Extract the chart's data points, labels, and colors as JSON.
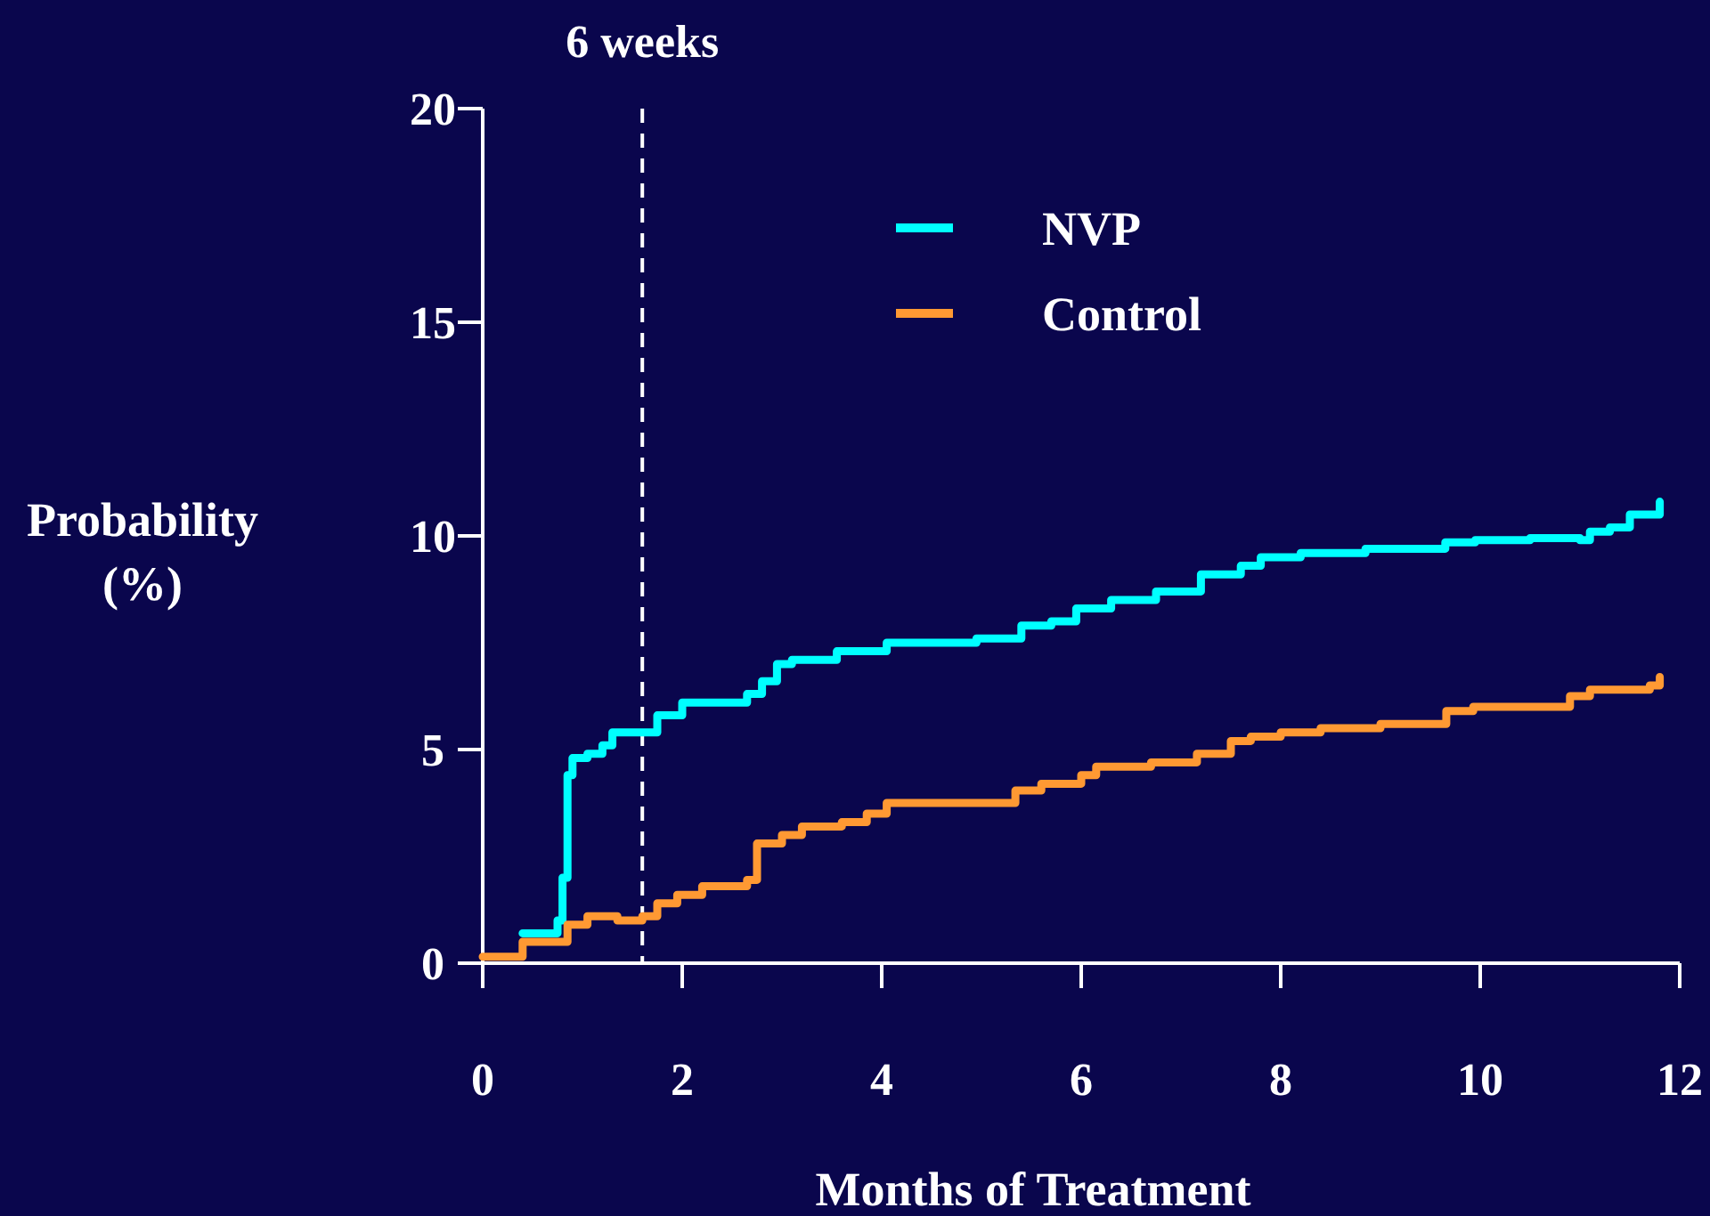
{
  "chart_data": {
    "type": "step",
    "xlabel": "Months of Treatment",
    "ylabel": "Probability (%)",
    "xlim": [
      0,
      12
    ],
    "ylim": [
      0,
      20
    ],
    "xticks": [
      0,
      2,
      4,
      6,
      8,
      10,
      12
    ],
    "yticks": [
      0,
      5,
      10,
      15,
      20
    ],
    "grid": false,
    "legend": "top right",
    "line_style": "solid",
    "marker": "none",
    "ref_lines": [
      {
        "axis": "x",
        "value": 1.6,
        "label": "6 weeks",
        "color": "#ffffff",
        "line_style": "dashed"
      }
    ],
    "series": [
      {
        "name": "NVP",
        "color": "#00ffff",
        "x": [
          0.4,
          0.75,
          0.8,
          0.85,
          0.9,
          1.05,
          1.2,
          1.3,
          1.75,
          2.0,
          2.65,
          2.8,
          2.95,
          3.1,
          3.55,
          4.05,
          4.95,
          5.4,
          5.7,
          5.95,
          6.3,
          6.75,
          7.2,
          7.6,
          7.8,
          8.2,
          8.85,
          9.65,
          9.95,
          10.5,
          11.0,
          11.1,
          11.3,
          11.5,
          11.65,
          11.8
        ],
        "values": [
          0.7,
          1.0,
          2.0,
          4.4,
          4.8,
          4.9,
          5.1,
          5.4,
          5.8,
          6.1,
          6.3,
          6.6,
          7.0,
          7.1,
          7.3,
          7.5,
          7.6,
          7.9,
          8.0,
          8.3,
          8.5,
          8.7,
          9.1,
          9.3,
          9.5,
          9.6,
          9.7,
          9.85,
          9.9,
          9.95,
          9.9,
          10.1,
          10.2,
          10.5,
          10.5,
          10.8
        ]
      },
      {
        "name": "Control",
        "color": "#ff9933",
        "x": [
          0,
          0.4,
          0.85,
          1.05,
          1.35,
          1.6,
          1.75,
          1.95,
          2.2,
          2.65,
          2.75,
          3.0,
          3.2,
          3.6,
          3.85,
          4.05,
          5.34,
          5.6,
          6.0,
          6.15,
          6.7,
          7.16,
          7.5,
          7.7,
          8.0,
          8.4,
          9.0,
          9.66,
          9.93,
          10.9,
          11.1,
          11.7,
          11.8
        ],
        "values": [
          0.15,
          0.5,
          0.9,
          1.1,
          1.0,
          1.1,
          1.4,
          1.6,
          1.8,
          1.95,
          2.8,
          3.0,
          3.2,
          3.3,
          3.5,
          3.75,
          4.04,
          4.2,
          4.4,
          4.6,
          4.7,
          4.9,
          5.2,
          5.3,
          5.4,
          5.5,
          5.6,
          5.9,
          6.0,
          6.25,
          6.4,
          6.5,
          6.7
        ]
      }
    ]
  }
}
